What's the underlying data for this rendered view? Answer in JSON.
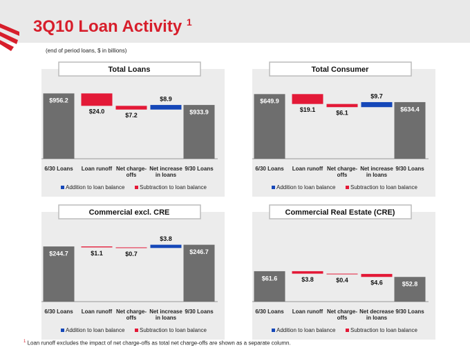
{
  "title": "3Q10 Loan Activity",
  "title_note": "1",
  "subtitle": "(end of period loans, $ in billions)",
  "footnote_mark": "1",
  "footnote": "Loan runoff excludes the impact of net charge-offs as total net charge-offs are shown as a separate column.",
  "chart_data": [
    {
      "type": "waterfall",
      "title": "Total Loans",
      "categories": [
        "6/30 Loans",
        "Loan runoff",
        "Net charge-offs",
        "Net increase in loans",
        "9/30 Loans"
      ],
      "values": [
        956.2,
        null,
        null,
        null,
        933.9
      ],
      "value_labels": [
        "$956.2",
        null,
        null,
        null,
        "$933.9"
      ],
      "color": "#6e6e6e",
      "ylim": [
        830,
        970
      ],
      "series": [
        {
          "name": "Addition to loan balance",
          "color": "#1547b8",
          "values": [
            null,
            null,
            null,
            8.9,
            null
          ],
          "value_labels": [
            null,
            null,
            null,
            "$8.9",
            null
          ]
        },
        {
          "name": "Subtraction to loan balance",
          "color": "#e31937",
          "values": [
            null,
            24.0,
            7.2,
            null,
            null
          ],
          "value_labels": [
            null,
            "$24.0",
            "$7.2",
            null,
            null
          ]
        }
      ]
    },
    {
      "type": "waterfall",
      "title": "Total Consumer",
      "categories": [
        "6/30 Loans",
        "Loan runoff",
        "Net charge-offs",
        "Net increase in loans",
        "9/30 Loans"
      ],
      "values": [
        649.9,
        null,
        null,
        null,
        634.4
      ],
      "value_labels": [
        "$649.9",
        null,
        null,
        null,
        "$634.4"
      ],
      "color": "#6e6e6e",
      "ylim": [
        525,
        665
      ],
      "series": [
        {
          "name": "Addition to loan balance",
          "color": "#1547b8",
          "values": [
            null,
            null,
            null,
            9.7,
            null
          ],
          "value_labels": [
            null,
            null,
            null,
            "$9.7",
            null
          ]
        },
        {
          "name": "Subtraction to loan balance",
          "color": "#e31937",
          "values": [
            null,
            19.1,
            6.1,
            null,
            null
          ],
          "value_labels": [
            null,
            "$19.1",
            "$6.1",
            null,
            null
          ]
        }
      ]
    },
    {
      "type": "waterfall",
      "title": "Commercial excl. CRE",
      "categories": [
        "6/30 Loans",
        "Loan runoff",
        "Net charge-offs",
        "Net increase in loans",
        "9/30 Loans"
      ],
      "values": [
        244.7,
        null,
        null,
        null,
        246.7
      ],
      "value_labels": [
        "$244.7",
        null,
        null,
        null,
        "$246.7"
      ],
      "color": "#6e6e6e",
      "ylim": [
        180,
        265
      ],
      "series": [
        {
          "name": "Addition to loan balance",
          "color": "#1547b8",
          "values": [
            null,
            null,
            null,
            3.8,
            null
          ],
          "value_labels": [
            null,
            null,
            null,
            "$3.8",
            null
          ]
        },
        {
          "name": "Subtraction to loan balance",
          "color": "#e31937",
          "values": [
            null,
            1.1,
            0.7,
            null,
            null
          ],
          "value_labels": [
            null,
            "$1.1",
            "$0.7",
            null,
            null
          ]
        }
      ]
    },
    {
      "type": "waterfall",
      "title": "Commercial Real Estate (CRE)",
      "categories": [
        "6/30 Loans",
        "Loan runoff",
        "Net charge-offs",
        "Net decrease in loans",
        "9/30 Loans"
      ],
      "values": [
        61.6,
        null,
        null,
        null,
        52.8
      ],
      "value_labels": [
        "$61.6",
        null,
        null,
        null,
        "$52.8"
      ],
      "color": "#6e6e6e",
      "ylim": [
        15,
        126
      ],
      "series": [
        {
          "name": "Addition to loan balance",
          "color": "#1547b8",
          "values": [
            null,
            null,
            null,
            null,
            null
          ],
          "value_labels": [
            null,
            null,
            null,
            null,
            null
          ]
        },
        {
          "name": "Subtraction to loan balance",
          "color": "#e31937",
          "values": [
            null,
            3.8,
            0.4,
            4.6,
            null
          ],
          "value_labels": [
            null,
            "$3.8",
            "$0.4",
            "$4.6",
            null
          ]
        }
      ]
    }
  ]
}
